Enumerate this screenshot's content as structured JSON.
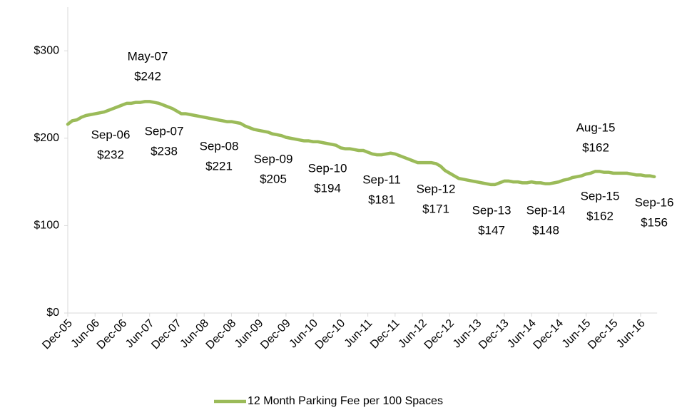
{
  "chart_data": {
    "type": "line",
    "categories": [
      "Dec-05",
      null,
      null,
      null,
      null,
      null,
      "Jun-06",
      null,
      null,
      null,
      null,
      null,
      "Dec-06",
      null,
      null,
      null,
      null,
      null,
      "Jun-07",
      null,
      null,
      null,
      null,
      null,
      "Dec-07",
      null,
      null,
      null,
      null,
      null,
      "Jun-08",
      null,
      null,
      null,
      null,
      null,
      "Dec-08",
      null,
      null,
      null,
      null,
      null,
      "Jun-09",
      null,
      null,
      null,
      null,
      null,
      "Dec-09",
      null,
      null,
      null,
      null,
      null,
      "Jun-10",
      null,
      null,
      null,
      null,
      null,
      "Dec-10",
      null,
      null,
      null,
      null,
      null,
      "Jun-11",
      null,
      null,
      null,
      null,
      null,
      "Dec-11",
      null,
      null,
      null,
      null,
      null,
      "Jun-12",
      null,
      null,
      null,
      null,
      null,
      "Dec-12",
      null,
      null,
      null,
      null,
      null,
      "Jun-13",
      null,
      null,
      null,
      null,
      null,
      "Dec-13",
      null,
      null,
      null,
      null,
      null,
      "Jun-14",
      null,
      null,
      null,
      null,
      null,
      "Dec-14",
      null,
      null,
      null,
      null,
      null,
      "Jun-15",
      null,
      null,
      null,
      null,
      null,
      "Dec-15",
      null,
      null,
      null,
      null,
      null,
      "Jun-16",
      null,
      null,
      null
    ],
    "series": [
      {
        "name": "12 Month Parking Fee per 100 Spaces",
        "color": "#9bbb59",
        "values": [
          216,
          220,
          221,
          224,
          226,
          227,
          228,
          229,
          230,
          232,
          234,
          236,
          238,
          240,
          240,
          241,
          241,
          242,
          242,
          241,
          240,
          238,
          236,
          234,
          231,
          228,
          228,
          227,
          226,
          225,
          224,
          223,
          222,
          221,
          220,
          219,
          219,
          218,
          217,
          214,
          212,
          210,
          209,
          208,
          207,
          205,
          204,
          203,
          201,
          200,
          199,
          198,
          197,
          197,
          196,
          196,
          195,
          194,
          193,
          192,
          189,
          188,
          188,
          187,
          186,
          186,
          184,
          182,
          181,
          181,
          182,
          183,
          182,
          180,
          178,
          176,
          174,
          172,
          172,
          172,
          172,
          171,
          168,
          163,
          160,
          157,
          154,
          153,
          152,
          151,
          150,
          149,
          148,
          147,
          147,
          149,
          151,
          151,
          150,
          150,
          149,
          149,
          150,
          149,
          149,
          148,
          148,
          149,
          150,
          152,
          153,
          155,
          156,
          157,
          159,
          160,
          162,
          162,
          161,
          161,
          160,
          160,
          160,
          160,
          159,
          158,
          158,
          157,
          157,
          156
        ]
      }
    ],
    "ylim": [
      0,
      350
    ],
    "yticks": [
      {
        "value": 0,
        "label": "$0"
      },
      {
        "value": 100,
        "label": "$100"
      },
      {
        "value": 200,
        "label": "$200"
      },
      {
        "value": 300,
        "label": "$300"
      }
    ],
    "grid": false,
    "legend": "bottom",
    "annotations": [
      {
        "date": "May-07",
        "label": "$242"
      },
      {
        "date": "Sep-06",
        "label": "$232"
      },
      {
        "date": "Sep-07",
        "label": "$238"
      },
      {
        "date": "Sep-08",
        "label": "$221"
      },
      {
        "date": "Sep-09",
        "label": "$205"
      },
      {
        "date": "Sep-10",
        "label": "$194"
      },
      {
        "date": "Sep-11",
        "label": "$181"
      },
      {
        "date": "Sep-12",
        "label": "$171"
      },
      {
        "date": "Sep-13",
        "label": "$147"
      },
      {
        "date": "Sep-14",
        "label": "$148"
      },
      {
        "date": "Aug-15",
        "label": "$162"
      },
      {
        "date": "Sep-15",
        "label": "$162"
      },
      {
        "date": "Sep-16",
        "label": "$156"
      }
    ]
  }
}
